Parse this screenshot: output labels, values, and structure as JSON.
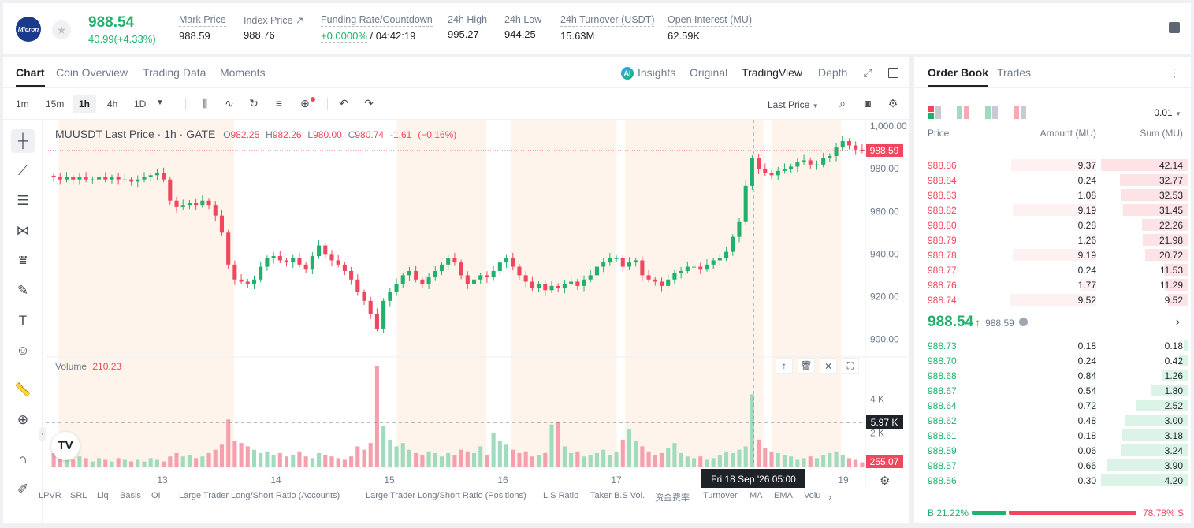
{
  "ticker": {
    "logo_text": "Micron",
    "price": "988.54",
    "change": "40.99(+4.33%)"
  },
  "stats": [
    {
      "label": "Mark Price",
      "value": "988.59"
    },
    {
      "label": "Index Price ↗",
      "value": "988.76"
    },
    {
      "label": "Funding Rate/Countdown",
      "value_rate": "+0.0000%",
      "value_rest": " / 04:42:19"
    },
    {
      "label": "24h High",
      "value": "995.27"
    },
    {
      "label": "24h Low",
      "value": "944.25"
    },
    {
      "label": "24h Turnover (USDT)",
      "value": "15.63M"
    },
    {
      "label": "Open Interest (MU)",
      "value": "62.59K"
    }
  ],
  "chart_tabs": [
    "Chart",
    "Coin Overview",
    "Trading Data",
    "Moments"
  ],
  "view_tabs": {
    "insights": "Insights",
    "original": "Original",
    "tradingview": "TradingView",
    "depth": "Depth"
  },
  "timeframes": [
    "1m",
    "15m",
    "1h",
    "4h",
    "1D"
  ],
  "active_timeframe": "1h",
  "price_type": "Last Price",
  "legend": {
    "symbol": "MUUSDT Last Price · 1h · GATE",
    "o": "982.25",
    "h": "982.26",
    "l": "980.00",
    "c": "980.74",
    "chg": "-1.61",
    "chg_pct": "(−0.16%)"
  },
  "volume_legend": {
    "label": "Volume",
    "value": "210.23"
  },
  "axis": {
    "price_ticks": [
      "1,000.00",
      "980.00",
      "960.00",
      "940.00",
      "920.00",
      "900.00"
    ],
    "vol_ticks": [
      "4 K",
      "2 K"
    ],
    "time_ticks": [
      "13",
      "14",
      "15",
      "16",
      "17",
      "19"
    ],
    "last_price_label": "988.59",
    "crosshair_vol": "5.97 K",
    "vol_last": "255.07",
    "crosshair_time": "Fri 18 Sep '26     05:00"
  },
  "indicators": [
    "LPVR",
    "SRL",
    "Liq",
    "Basis",
    "OI",
    "Large Trader Long/Short Ratio (Accounts)",
    "Large Trader Long/Short Ratio (Positions)",
    "L.S Ratio",
    "Taker B.S Vol.",
    "资金费率",
    "Turnover",
    "MA",
    "EMA",
    "Volu"
  ],
  "orderbook": {
    "tabs": [
      "Order Book",
      "Trades"
    ],
    "precision": "0.01",
    "headers": {
      "price": "Price",
      "amount": "Amount (MU)",
      "sum": "Sum (MU)"
    },
    "asks": [
      {
        "p": "988.86",
        "a": "9.37",
        "s": "42.14"
      },
      {
        "p": "988.84",
        "a": "0.24",
        "s": "32.77"
      },
      {
        "p": "988.83",
        "a": "1.08",
        "s": "32.53"
      },
      {
        "p": "988.82",
        "a": "9.19",
        "s": "31.45"
      },
      {
        "p": "988.80",
        "a": "0.28",
        "s": "22.26"
      },
      {
        "p": "988.79",
        "a": "1.26",
        "s": "21.98"
      },
      {
        "p": "988.78",
        "a": "9.19",
        "s": "20.72"
      },
      {
        "p": "988.77",
        "a": "0.24",
        "s": "11.53"
      },
      {
        "p": "988.76",
        "a": "1.77",
        "s": "11.29"
      },
      {
        "p": "988.74",
        "a": "9.52",
        "s": "9.52"
      }
    ],
    "last": {
      "price": "988.54",
      "mark": "988.59"
    },
    "bids": [
      {
        "p": "988.73",
        "a": "0.18",
        "s": "0.18"
      },
      {
        "p": "988.70",
        "a": "0.24",
        "s": "0.42"
      },
      {
        "p": "988.68",
        "a": "0.84",
        "s": "1.26"
      },
      {
        "p": "988.67",
        "a": "0.54",
        "s": "1.80"
      },
      {
        "p": "988.64",
        "a": "0.72",
        "s": "2.52"
      },
      {
        "p": "988.62",
        "a": "0.48",
        "s": "3.00"
      },
      {
        "p": "988.61",
        "a": "0.18",
        "s": "3.18"
      },
      {
        "p": "988.59",
        "a": "0.06",
        "s": "3.24"
      },
      {
        "p": "988.57",
        "a": "0.66",
        "s": "3.90"
      },
      {
        "p": "988.56",
        "a": "0.30",
        "s": "4.20"
      }
    ],
    "buy_ratio": "B 21.22%",
    "sell_ratio": "78.78% S",
    "buy_fraction": 0.2122
  },
  "colors": {
    "up": "#20b26c",
    "down": "#f0475e",
    "session": "#fff4ec"
  },
  "chart_data": {
    "type": "candlestick",
    "series_name": "MUUSDT",
    "price_close": [
      976,
      975,
      976,
      975,
      976,
      975,
      975,
      976,
      975,
      976,
      975,
      975,
      974,
      975,
      976,
      977,
      978,
      975,
      965,
      962,
      963,
      964,
      963,
      965,
      963,
      958,
      950,
      935,
      928,
      927,
      926,
      928,
      934,
      938,
      939,
      937,
      936,
      938,
      935,
      933,
      939,
      944,
      940,
      937,
      935,
      932,
      928,
      922,
      918,
      912,
      905,
      918,
      922,
      926,
      930,
      932,
      928,
      926,
      929,
      932,
      935,
      938,
      936,
      930,
      926,
      928,
      930,
      929,
      932,
      936,
      938,
      934,
      930,
      927,
      924,
      926,
      923,
      925,
      924,
      926,
      927,
      925,
      928,
      930,
      934,
      936,
      938,
      938,
      934,
      936,
      937,
      930,
      928,
      927,
      925,
      928,
      931,
      932,
      934,
      934,
      933,
      935,
      937,
      938,
      941,
      948,
      955,
      972,
      985,
      980,
      978,
      977,
      979,
      980,
      981,
      983,
      984,
      982,
      982,
      985,
      986,
      990,
      993,
      991,
      989,
      988.59
    ],
    "volume_k": [
      0.8,
      0.6,
      0.5,
      0.4,
      0.6,
      0.5,
      0.3,
      0.5,
      0.4,
      0.3,
      0.5,
      0.4,
      0.3,
      0.4,
      0.3,
      0.5,
      0.4,
      0.3,
      0.6,
      0.8,
      0.6,
      0.7,
      0.5,
      0.6,
      0.8,
      1.0,
      1.3,
      2.8,
      1.5,
      1.4,
      1.2,
      1.0,
      0.8,
      0.9,
      0.7,
      0.8,
      0.6,
      0.7,
      0.9,
      0.6,
      0.5,
      0.8,
      0.7,
      0.6,
      0.5,
      0.4,
      0.6,
      1.2,
      1.0,
      1.4,
      5.97,
      2.4,
      1.6,
      1.2,
      1.4,
      1.0,
      0.8,
      0.7,
      0.9,
      0.8,
      0.6,
      0.8,
      0.7,
      1.0,
      0.9,
      0.8,
      1.2,
      0.7,
      2.0,
      1.5,
      1.3,
      1.0,
      0.8,
      0.9,
      0.6,
      0.7,
      0.8,
      2.5,
      2.6,
      1.2,
      0.8,
      0.9,
      0.6,
      0.7,
      0.8,
      1.0,
      0.7,
      0.9,
      1.6,
      2.2,
      1.5,
      1.2,
      0.9,
      0.7,
      0.8,
      1.1,
      1.4,
      0.8,
      0.6,
      0.5,
      0.6,
      0.4,
      0.5,
      0.7,
      0.9,
      0.8,
      1.0,
      1.2,
      4.3,
      1.6,
      1.1,
      0.9,
      0.8,
      0.7,
      0.6,
      0.4,
      0.5,
      0.6,
      0.5,
      0.7,
      0.8,
      0.9,
      0.7,
      0.5,
      0.4,
      0.255
    ],
    "ylim": [
      895,
      1003
    ],
    "vol_ylim": [
      0,
      6
    ]
  }
}
